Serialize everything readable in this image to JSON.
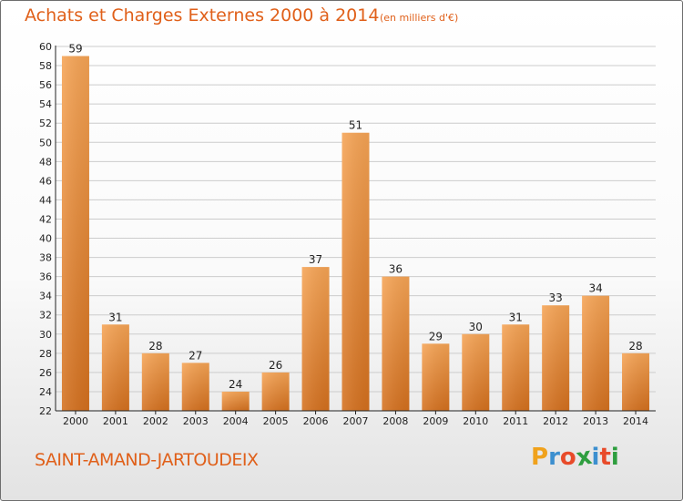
{
  "header": {
    "title": "Achats et Charges Externes 2000 à 2014",
    "subtitle": "(en milliers d'€)"
  },
  "footer": {
    "place": "SAINT-AMAND-JARTOUDEIX",
    "logo_text": "Proxiti",
    "logo_letters": [
      "P",
      "r",
      "o",
      "x",
      "i",
      "t",
      "i"
    ],
    "logo_colors": [
      "#f0a21c",
      "#3c8fcf",
      "#e84b2a",
      "#2e9e3f",
      "#3c8fcf",
      "#e84b2a",
      "#2e9e3f"
    ]
  },
  "colors": {
    "bar_light": "#f6a455",
    "bar_dark": "#d4701e",
    "title": "#e0601a",
    "axis": "#222222",
    "grid": "#cccccc"
  },
  "chart_data": {
    "type": "bar",
    "title": "Achats et Charges Externes 2000 à 2014",
    "subtitle": "(en milliers d'€)",
    "categories": [
      "2000",
      "2001",
      "2002",
      "2003",
      "2004",
      "2005",
      "2006",
      "2007",
      "2008",
      "2009",
      "2010",
      "2011",
      "2012",
      "2013",
      "2014"
    ],
    "values": [
      59,
      31,
      28,
      27,
      24,
      26,
      37,
      51,
      36,
      29,
      30,
      31,
      33,
      34,
      28
    ],
    "ylim": [
      22,
      60
    ],
    "ytick_step": 2,
    "xlabel": "",
    "ylabel": "",
    "grid": true,
    "legend": "none",
    "data_labels": true
  }
}
